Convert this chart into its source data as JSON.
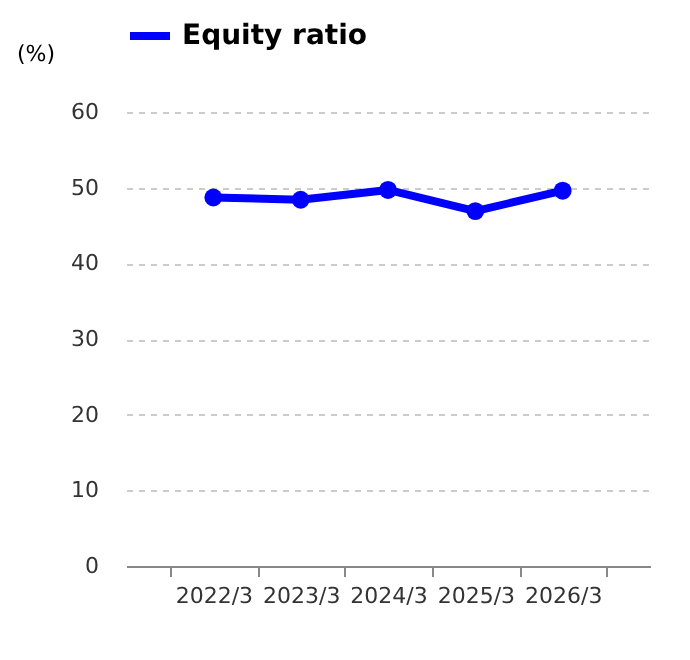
{
  "chart_data": {
    "type": "line",
    "ylabel": "(%)",
    "categories": [
      "2022/3",
      "2023/3",
      "2024/3",
      "2025/3",
      "2026/3"
    ],
    "series": [
      {
        "name": "Equity ratio",
        "color": "#0000ff",
        "values": [
          48.7,
          48.4,
          49.7,
          46.9,
          49.6
        ]
      }
    ],
    "ylim": [
      0,
      60
    ],
    "yticks": [
      0,
      10,
      20,
      30,
      40,
      50,
      60
    ],
    "grid": "y",
    "legend": "top",
    "marker": "circle",
    "line_style": "solid"
  }
}
